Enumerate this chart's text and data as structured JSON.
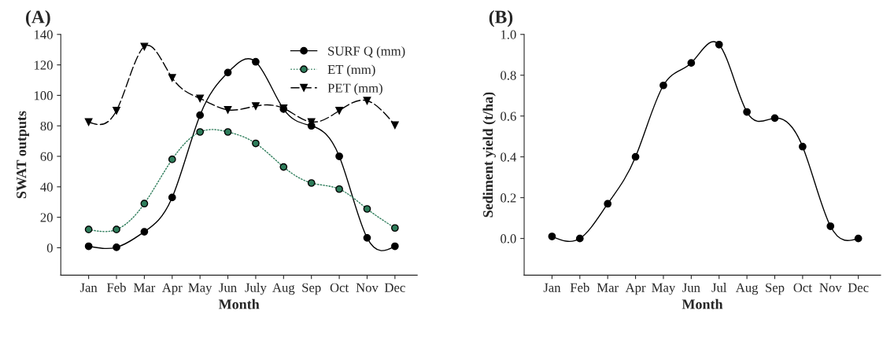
{
  "chart_data": [
    {
      "type": "line",
      "title": "(A)",
      "xlabel": "Month",
      "ylabel": "SWAT outputs",
      "categories": [
        "Jan",
        "Feb",
        "Mar",
        "Apr",
        "May",
        "Jun",
        "July",
        "Aug",
        "Sep",
        "Oct",
        "Nov",
        "Dec"
      ],
      "series": [
        {
          "name": "SURF Q (mm)",
          "color": "#000000",
          "marker": "circle",
          "line_style": "solid",
          "values": [
            1,
            0.3,
            10.5,
            33,
            87,
            115,
            122,
            91,
            80,
            60,
            6.5,
            1
          ]
        },
        {
          "name": "ET (mm)",
          "color": "#2e7d5b",
          "marker": "circle",
          "line_style": "dotted",
          "values": [
            12,
            12,
            29,
            58,
            76,
            76,
            68.5,
            53,
            42.5,
            38.5,
            25.5,
            13
          ]
        },
        {
          "name": "PET (mm)",
          "color": "#000000",
          "marker": "triangle",
          "line_style": "dashed",
          "values": [
            82.5,
            90,
            132,
            111.5,
            98,
            90.5,
            93,
            91.5,
            82.5,
            90,
            96.5,
            80.5
          ]
        }
      ],
      "ylim": [
        -18,
        140
      ],
      "yticks": [
        0,
        20,
        40,
        60,
        80,
        100,
        120,
        140
      ],
      "legend": "top right",
      "grid": false
    },
    {
      "type": "line",
      "title": "(B)",
      "xlabel": "Month",
      "ylabel": "Sediment yield (t/ha)",
      "categories": [
        "Jan",
        "Feb",
        "Mar",
        "Apr",
        "May",
        "Jun",
        "Jul",
        "Aug",
        "Sep",
        "Oct",
        "Nov",
        "Dec"
      ],
      "series": [
        {
          "color": "#000000",
          "marker": "circle",
          "line_style": "solid",
          "values": [
            0.01,
            0.0,
            0.17,
            0.4,
            0.75,
            0.86,
            0.95,
            0.62,
            0.59,
            0.45,
            0.06,
            0.0
          ]
        }
      ],
      "ylim": [
        -0.18,
        1.0
      ],
      "yticks": [
        {
          "value": 0,
          "label": "0.0"
        },
        0.2,
        0.4,
        0.6,
        0.8,
        {
          "value": 1,
          "label": "1.0"
        }
      ],
      "legend": false,
      "grid": false
    }
  ]
}
